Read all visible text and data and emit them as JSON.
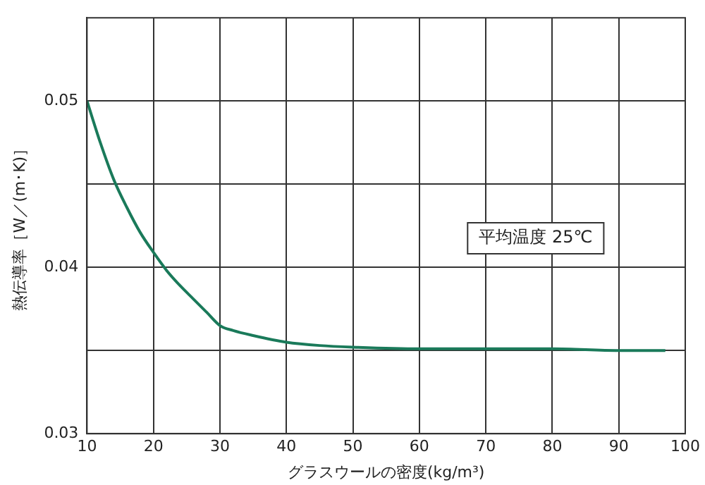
{
  "chart_data": {
    "type": "line",
    "xlabel": "グラスウールの密度(kg/m³)",
    "ylabel": "熱伝導率［W／(m･K)］",
    "x": [
      10,
      12,
      14,
      16,
      18,
      20,
      22,
      24,
      26,
      28,
      30,
      32,
      35,
      40,
      45,
      50,
      60,
      70,
      80,
      90,
      97
    ],
    "series": [
      {
        "color": "#1a7a5a",
        "values": [
          0.05,
          0.0475,
          0.0453,
          0.0436,
          0.0421,
          0.0409,
          0.0398,
          0.0389,
          0.0381,
          0.0373,
          0.0365,
          0.0362,
          0.0359,
          0.0355,
          0.0353,
          0.0352,
          0.0351,
          0.0351,
          0.0351,
          0.035,
          0.035
        ]
      }
    ],
    "xlim": [
      10,
      100
    ],
    "xticks": [
      10,
      20,
      30,
      40,
      50,
      60,
      70,
      80,
      90,
      100
    ],
    "ylim": [
      0.03,
      0.055
    ],
    "yticks": [
      0.03,
      {
        "value": 0.035,
        "label": null
      },
      0.04,
      {
        "value": 0.045,
        "label": null
      },
      0.05
    ],
    "annotations": [
      "平均温度 25℃"
    ],
    "grid": true,
    "legend": false,
    "marker": "none",
    "line_style": "solid"
  }
}
